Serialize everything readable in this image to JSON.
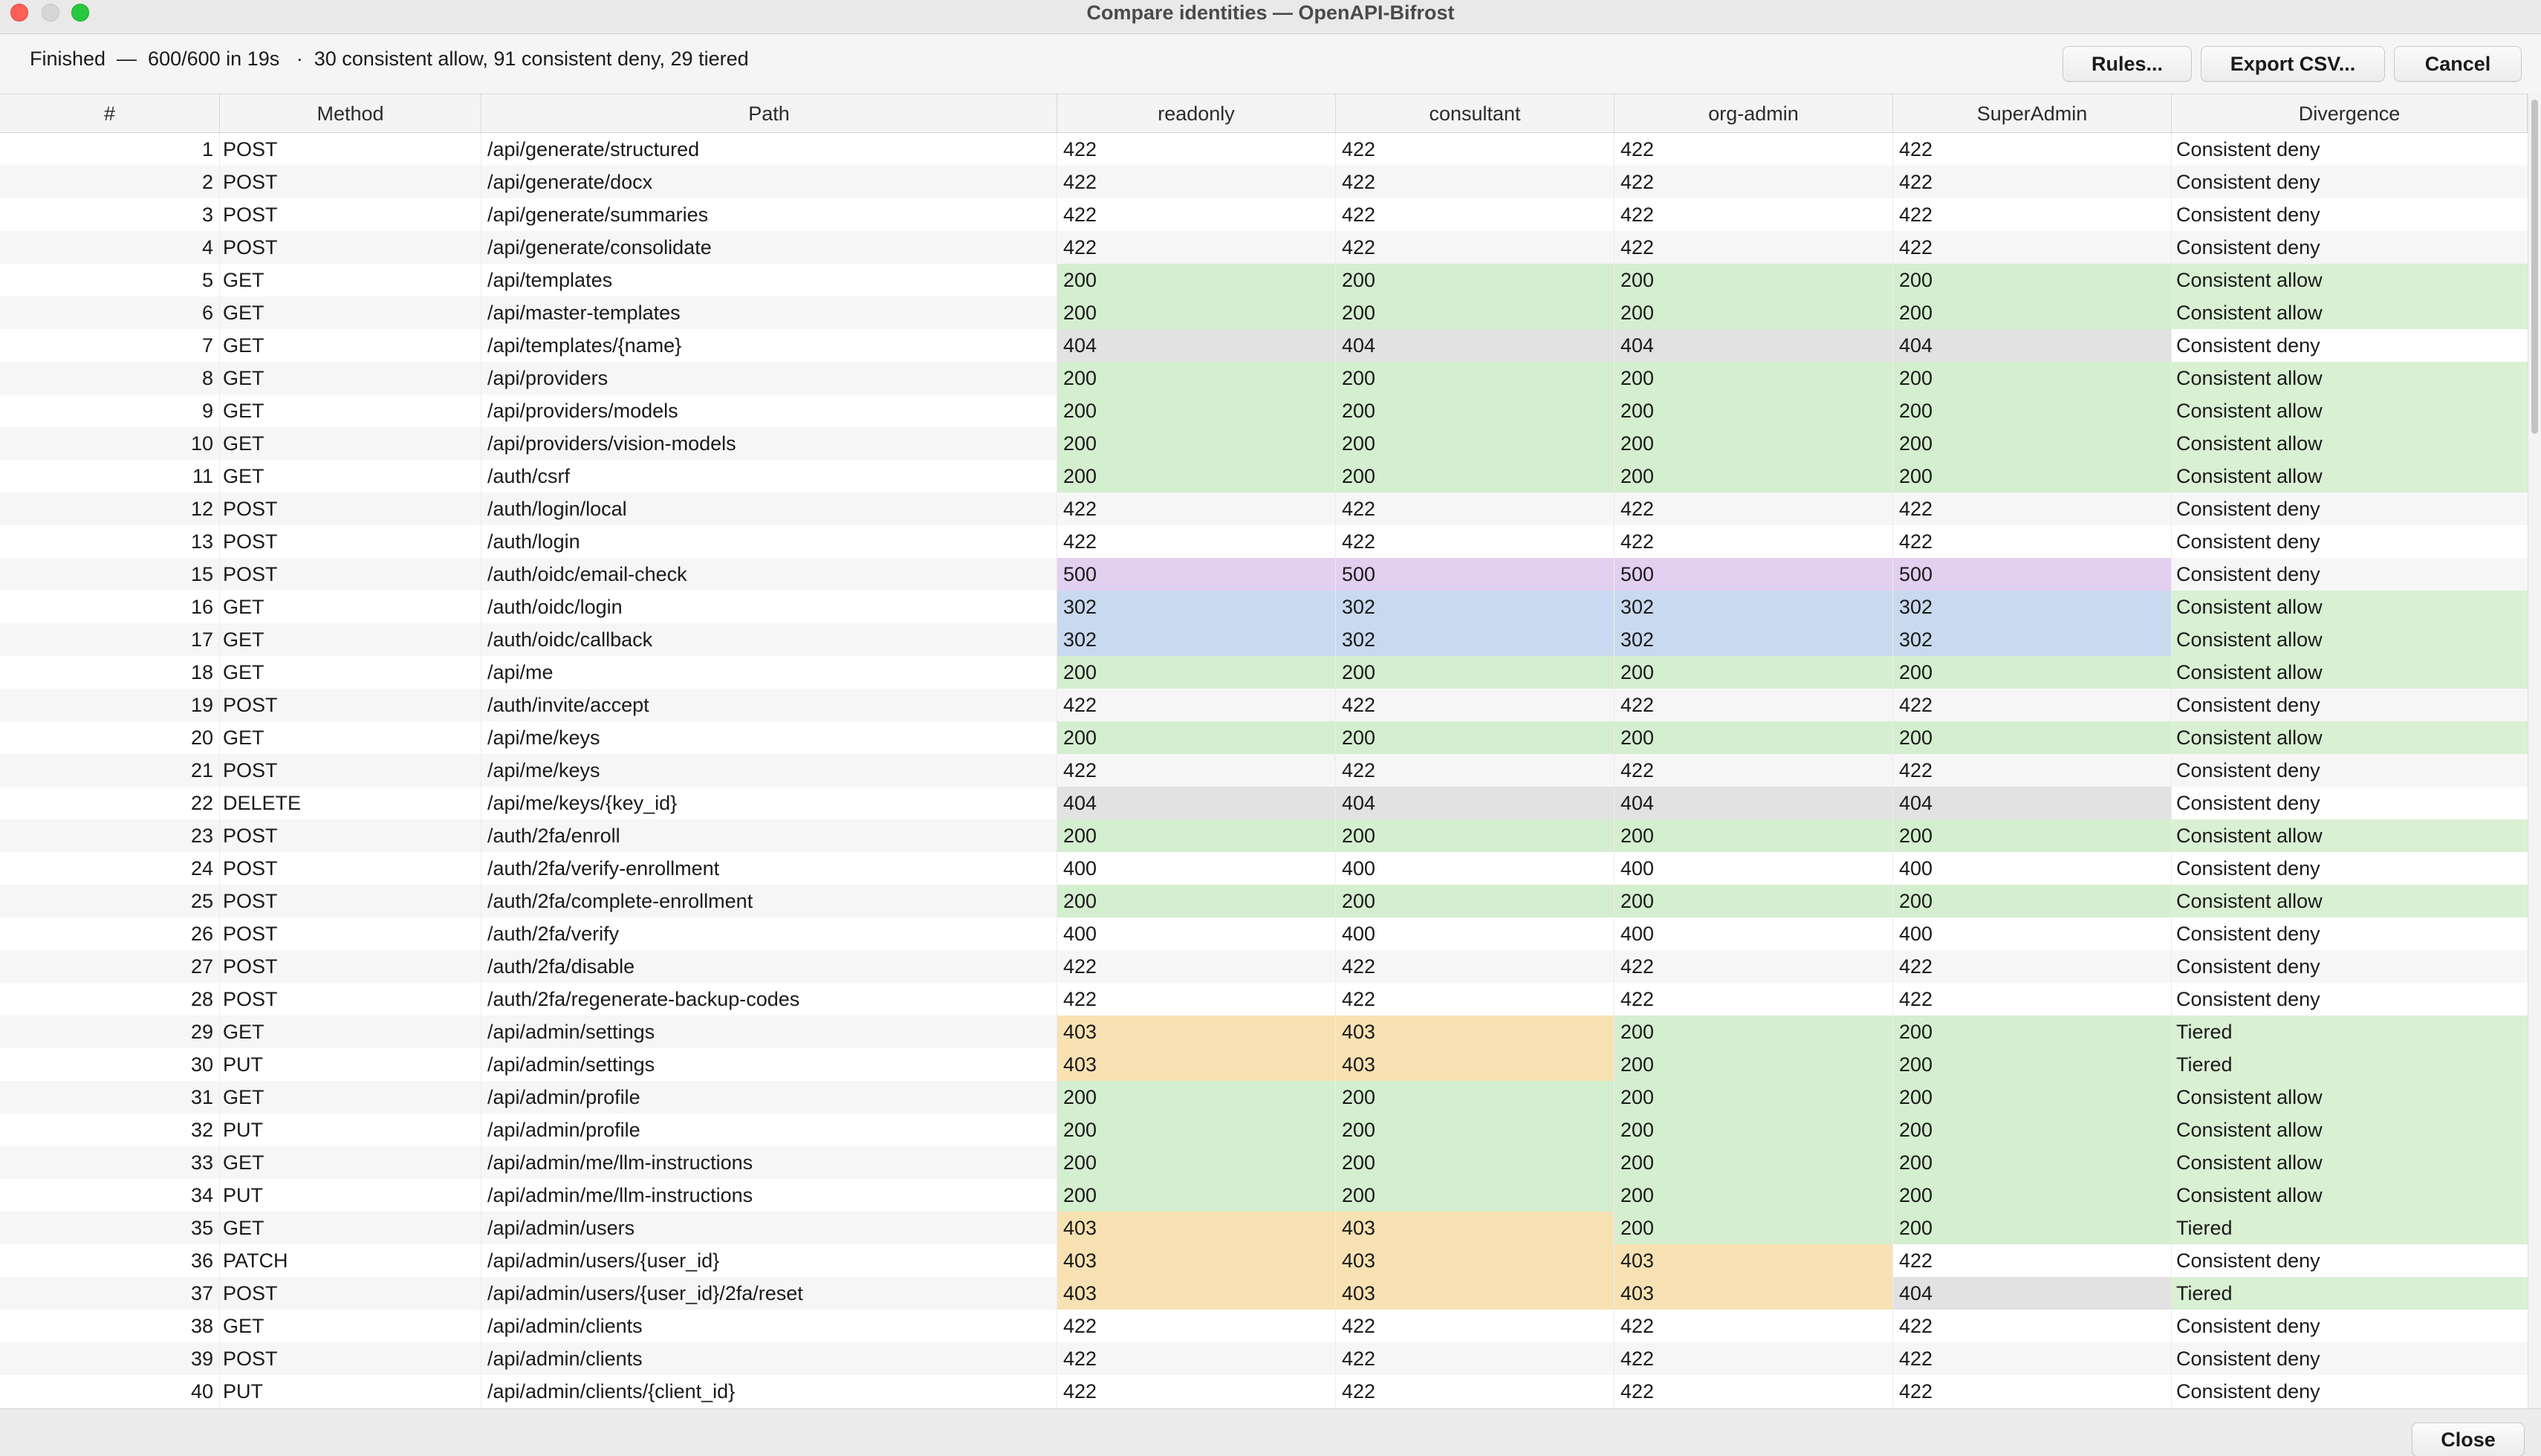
{
  "window": {
    "title": "Compare identities — OpenAPI-Bifrost"
  },
  "status": {
    "progress": "Finished  —  600/600 in 19s",
    "summary": "30 consistent allow, 91 consistent deny, 29 tiered",
    "separator": "·"
  },
  "toolbar": {
    "rules_label": "Rules...",
    "export_label": "Export CSV...",
    "cancel_label": "Cancel"
  },
  "footer": {
    "close_label": "Close"
  },
  "colors": {
    "allow_200": "#d4efcf",
    "redirect_302": "#c9d9ef",
    "forbidden_403": "#f8e2b3",
    "notfound_404": "#e2e2e2",
    "error_500": "#e3cff0"
  },
  "table": {
    "columns": [
      "#",
      "Method",
      "Path",
      "readonly",
      "consultant",
      "org-admin",
      "SuperAdmin",
      "Divergence"
    ],
    "rows": [
      {
        "n": "1",
        "method": "POST",
        "path": "/api/generate/structured",
        "codes": [
          "422",
          "422",
          "422",
          "422"
        ],
        "div": "Consistent deny"
      },
      {
        "n": "2",
        "method": "POST",
        "path": "/api/generate/docx",
        "codes": [
          "422",
          "422",
          "422",
          "422"
        ],
        "div": "Consistent deny"
      },
      {
        "n": "3",
        "method": "POST",
        "path": "/api/generate/summaries",
        "codes": [
          "422",
          "422",
          "422",
          "422"
        ],
        "div": "Consistent deny"
      },
      {
        "n": "4",
        "method": "POST",
        "path": "/api/generate/consolidate",
        "codes": [
          "422",
          "422",
          "422",
          "422"
        ],
        "div": "Consistent deny"
      },
      {
        "n": "5",
        "method": "GET",
        "path": "/api/templates",
        "codes": [
          "200",
          "200",
          "200",
          "200"
        ],
        "div": "Consistent allow"
      },
      {
        "n": "6",
        "method": "GET",
        "path": "/api/master-templates",
        "codes": [
          "200",
          "200",
          "200",
          "200"
        ],
        "div": "Consistent allow"
      },
      {
        "n": "7",
        "method": "GET",
        "path": "/api/templates/{name}",
        "codes": [
          "404",
          "404",
          "404",
          "404"
        ],
        "div": "Consistent deny"
      },
      {
        "n": "8",
        "method": "GET",
        "path": "/api/providers",
        "codes": [
          "200",
          "200",
          "200",
          "200"
        ],
        "div": "Consistent allow"
      },
      {
        "n": "9",
        "method": "GET",
        "path": "/api/providers/models",
        "codes": [
          "200",
          "200",
          "200",
          "200"
        ],
        "div": "Consistent allow"
      },
      {
        "n": "10",
        "method": "GET",
        "path": "/api/providers/vision-models",
        "codes": [
          "200",
          "200",
          "200",
          "200"
        ],
        "div": "Consistent allow"
      },
      {
        "n": "11",
        "method": "GET",
        "path": "/auth/csrf",
        "codes": [
          "200",
          "200",
          "200",
          "200"
        ],
        "div": "Consistent allow"
      },
      {
        "n": "12",
        "method": "POST",
        "path": "/auth/login/local",
        "codes": [
          "422",
          "422",
          "422",
          "422"
        ],
        "div": "Consistent deny"
      },
      {
        "n": "13",
        "method": "POST",
        "path": "/auth/login",
        "codes": [
          "422",
          "422",
          "422",
          "422"
        ],
        "div": "Consistent deny"
      },
      {
        "n": "15",
        "method": "POST",
        "path": "/auth/oidc/email-check",
        "codes": [
          "500",
          "500",
          "500",
          "500"
        ],
        "div": "Consistent deny"
      },
      {
        "n": "16",
        "method": "GET",
        "path": "/auth/oidc/login",
        "codes": [
          "302",
          "302",
          "302",
          "302"
        ],
        "div": "Consistent allow"
      },
      {
        "n": "17",
        "method": "GET",
        "path": "/auth/oidc/callback",
        "codes": [
          "302",
          "302",
          "302",
          "302"
        ],
        "div": "Consistent allow"
      },
      {
        "n": "18",
        "method": "GET",
        "path": "/api/me",
        "codes": [
          "200",
          "200",
          "200",
          "200"
        ],
        "div": "Consistent allow"
      },
      {
        "n": "19",
        "method": "POST",
        "path": "/auth/invite/accept",
        "codes": [
          "422",
          "422",
          "422",
          "422"
        ],
        "div": "Consistent deny"
      },
      {
        "n": "20",
        "method": "GET",
        "path": "/api/me/keys",
        "codes": [
          "200",
          "200",
          "200",
          "200"
        ],
        "div": "Consistent allow"
      },
      {
        "n": "21",
        "method": "POST",
        "path": "/api/me/keys",
        "codes": [
          "422",
          "422",
          "422",
          "422"
        ],
        "div": "Consistent deny"
      },
      {
        "n": "22",
        "method": "DELETE",
        "path": "/api/me/keys/{key_id}",
        "codes": [
          "404",
          "404",
          "404",
          "404"
        ],
        "div": "Consistent deny"
      },
      {
        "n": "23",
        "method": "POST",
        "path": "/auth/2fa/enroll",
        "codes": [
          "200",
          "200",
          "200",
          "200"
        ],
        "div": "Consistent allow"
      },
      {
        "n": "24",
        "method": "POST",
        "path": "/auth/2fa/verify-enrollment",
        "codes": [
          "400",
          "400",
          "400",
          "400"
        ],
        "div": "Consistent deny"
      },
      {
        "n": "25",
        "method": "POST",
        "path": "/auth/2fa/complete-enrollment",
        "codes": [
          "200",
          "200",
          "200",
          "200"
        ],
        "div": "Consistent allow"
      },
      {
        "n": "26",
        "method": "POST",
        "path": "/auth/2fa/verify",
        "codes": [
          "400",
          "400",
          "400",
          "400"
        ],
        "div": "Consistent deny"
      },
      {
        "n": "27",
        "method": "POST",
        "path": "/auth/2fa/disable",
        "codes": [
          "422",
          "422",
          "422",
          "422"
        ],
        "div": "Consistent deny"
      },
      {
        "n": "28",
        "method": "POST",
        "path": "/auth/2fa/regenerate-backup-codes",
        "codes": [
          "422",
          "422",
          "422",
          "422"
        ],
        "div": "Consistent deny"
      },
      {
        "n": "29",
        "method": "GET",
        "path": "/api/admin/settings",
        "codes": [
          "403",
          "403",
          "200",
          "200"
        ],
        "div": "Tiered"
      },
      {
        "n": "30",
        "method": "PUT",
        "path": "/api/admin/settings",
        "codes": [
          "403",
          "403",
          "200",
          "200"
        ],
        "div": "Tiered"
      },
      {
        "n": "31",
        "method": "GET",
        "path": "/api/admin/profile",
        "codes": [
          "200",
          "200",
          "200",
          "200"
        ],
        "div": "Consistent allow"
      },
      {
        "n": "32",
        "method": "PUT",
        "path": "/api/admin/profile",
        "codes": [
          "200",
          "200",
          "200",
          "200"
        ],
        "div": "Consistent allow"
      },
      {
        "n": "33",
        "method": "GET",
        "path": "/api/admin/me/llm-instructions",
        "codes": [
          "200",
          "200",
          "200",
          "200"
        ],
        "div": "Consistent allow"
      },
      {
        "n": "34",
        "method": "PUT",
        "path": "/api/admin/me/llm-instructions",
        "codes": [
          "200",
          "200",
          "200",
          "200"
        ],
        "div": "Consistent allow"
      },
      {
        "n": "35",
        "method": "GET",
        "path": "/api/admin/users",
        "codes": [
          "403",
          "403",
          "200",
          "200"
        ],
        "div": "Tiered"
      },
      {
        "n": "36",
        "method": "PATCH",
        "path": "/api/admin/users/{user_id}",
        "codes": [
          "403",
          "403",
          "403",
          "422"
        ],
        "div": "Consistent deny"
      },
      {
        "n": "37",
        "method": "POST",
        "path": "/api/admin/users/{user_id}/2fa/reset",
        "codes": [
          "403",
          "403",
          "403",
          "404"
        ],
        "div": "Tiered"
      },
      {
        "n": "38",
        "method": "GET",
        "path": "/api/admin/clients",
        "codes": [
          "422",
          "422",
          "422",
          "422"
        ],
        "div": "Consistent deny"
      },
      {
        "n": "39",
        "method": "POST",
        "path": "/api/admin/clients",
        "codes": [
          "422",
          "422",
          "422",
          "422"
        ],
        "div": "Consistent deny"
      },
      {
        "n": "40",
        "method": "PUT",
        "path": "/api/admin/clients/{client_id}",
        "codes": [
          "422",
          "422",
          "422",
          "422"
        ],
        "div": "Consistent deny"
      }
    ]
  }
}
